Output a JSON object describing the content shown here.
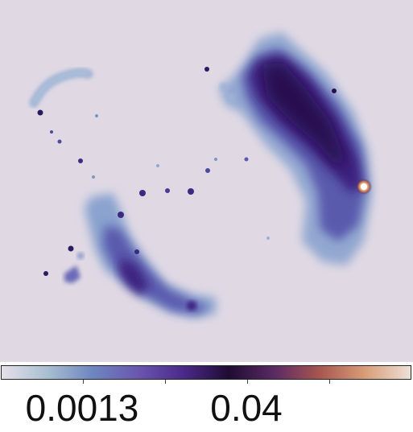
{
  "colorbar": {
    "tick_labels": [
      "0.0013",
      "0.04"
    ],
    "colormap_stops": [
      "#e6e0ea",
      "#a9bfd1",
      "#6e86c0",
      "#6a56b0",
      "#4a2a8a",
      "#1f0c33",
      "#5a2a64",
      "#a8564f",
      "#d99d78",
      "#ede0d8"
    ]
  },
  "image": {
    "background_color": "#e0d9e4",
    "description_icon": "density-map-image"
  }
}
